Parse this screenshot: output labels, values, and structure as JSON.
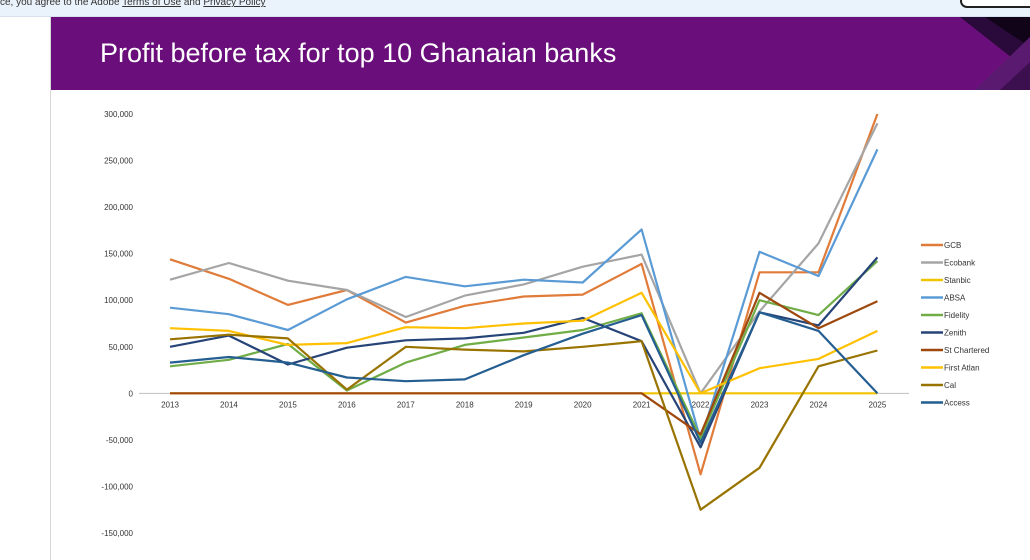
{
  "notice": {
    "prefix": "ce, you agree to the Adobe",
    "terms_link": "Terms of Use",
    "conjunction": "and",
    "privacy_link": "Privacy Policy"
  },
  "slide": {
    "title": "Profit before tax for top 10 Ghanaian banks",
    "banner_color": "#6a0e7b"
  },
  "chart_data": {
    "type": "line",
    "title": "",
    "xlabel": "",
    "ylabel": "",
    "ylim": [
      -150000,
      300000
    ],
    "yticks": [
      300000,
      250000,
      200000,
      150000,
      100000,
      50000,
      0,
      -50000,
      -100000,
      -150000
    ],
    "ytick_labels": [
      "300,000",
      "250,000",
      "200,000",
      "150,000",
      "100,000",
      "50,000",
      "0",
      "-50,000",
      "-100,000",
      "-150,000"
    ],
    "categories": [
      "2013",
      "2014",
      "2015",
      "2016",
      "2017",
      "2018",
      "2019",
      "2020",
      "2021",
      "2022",
      "2023",
      "2024",
      "2025"
    ],
    "grid": false,
    "legend_position": "right",
    "series": [
      {
        "name": "GCB",
        "color": "#e07b39",
        "values": [
          144000,
          123000,
          95000,
          111000,
          76000,
          94000,
          104000,
          106000,
          139000,
          -87000,
          130000,
          130000,
          300000
        ]
      },
      {
        "name": "Ecobank",
        "color": "#a5a5a5",
        "values": [
          122000,
          140000,
          121000,
          111000,
          82000,
          105000,
          117000,
          136000,
          149000,
          0,
          88000,
          161000,
          290000
        ]
      },
      {
        "name": "Stanbic",
        "color": "#f0c300",
        "values": [
          0,
          0,
          0,
          0,
          0,
          0,
          0,
          0,
          0,
          0,
          0,
          0,
          0
        ]
      },
      {
        "name": "ABSA",
        "color": "#5b9bd5",
        "values": [
          92000,
          85000,
          68000,
          101000,
          125000,
          115000,
          122000,
          119000,
          176000,
          -50000,
          152000,
          126000,
          262000
        ]
      },
      {
        "name": "Fidelity",
        "color": "#70ad47",
        "values": [
          29000,
          36000,
          53000,
          3000,
          33000,
          52000,
          60000,
          68000,
          86000,
          -48000,
          100000,
          84000,
          142000
        ]
      },
      {
        "name": "Zenith",
        "color": "#264478",
        "values": [
          50000,
          62000,
          31000,
          49000,
          57000,
          59000,
          65000,
          81000,
          56000,
          -58000,
          87000,
          73000,
          146000
        ]
      },
      {
        "name": "St Chartered",
        "color": "#9e480e",
        "values": [
          0,
          0,
          0,
          0,
          0,
          0,
          0,
          0,
          0,
          -44000,
          108000,
          70000,
          99000
        ]
      },
      {
        "name": "First Atlan",
        "color": "#ffc000",
        "values": [
          70000,
          67000,
          52000,
          54000,
          71000,
          70000,
          75000,
          78000,
          108000,
          0,
          27000,
          37000,
          67000
        ]
      },
      {
        "name": "Cal",
        "color": "#997300",
        "values": [
          58000,
          63000,
          59000,
          4000,
          50000,
          47000,
          45000,
          50000,
          56000,
          -125000,
          -80000,
          29000,
          46000
        ]
      },
      {
        "name": "Access",
        "color": "#255e91",
        "values": [
          33000,
          39000,
          33000,
          17000,
          13000,
          15000,
          41000,
          64000,
          84000,
          -53000,
          87000,
          67000,
          0
        ]
      }
    ]
  }
}
